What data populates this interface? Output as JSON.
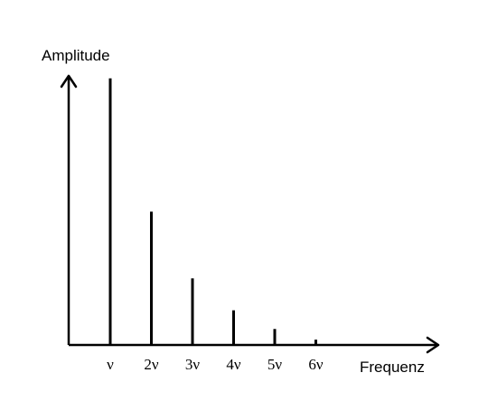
{
  "chart_data": {
    "type": "bar",
    "ylabel": "Amplitude",
    "xlabel": "Frequenz",
    "categories": [
      "ν",
      "2ν",
      "3ν",
      "4ν",
      "5ν",
      "6ν"
    ],
    "values": [
      1.0,
      0.5,
      0.25,
      0.13,
      0.06,
      0.02
    ],
    "ylim": [
      0,
      1.05
    ],
    "grid": false,
    "legend": "none",
    "bar_color": "#000000",
    "axis_color": "#000000"
  }
}
